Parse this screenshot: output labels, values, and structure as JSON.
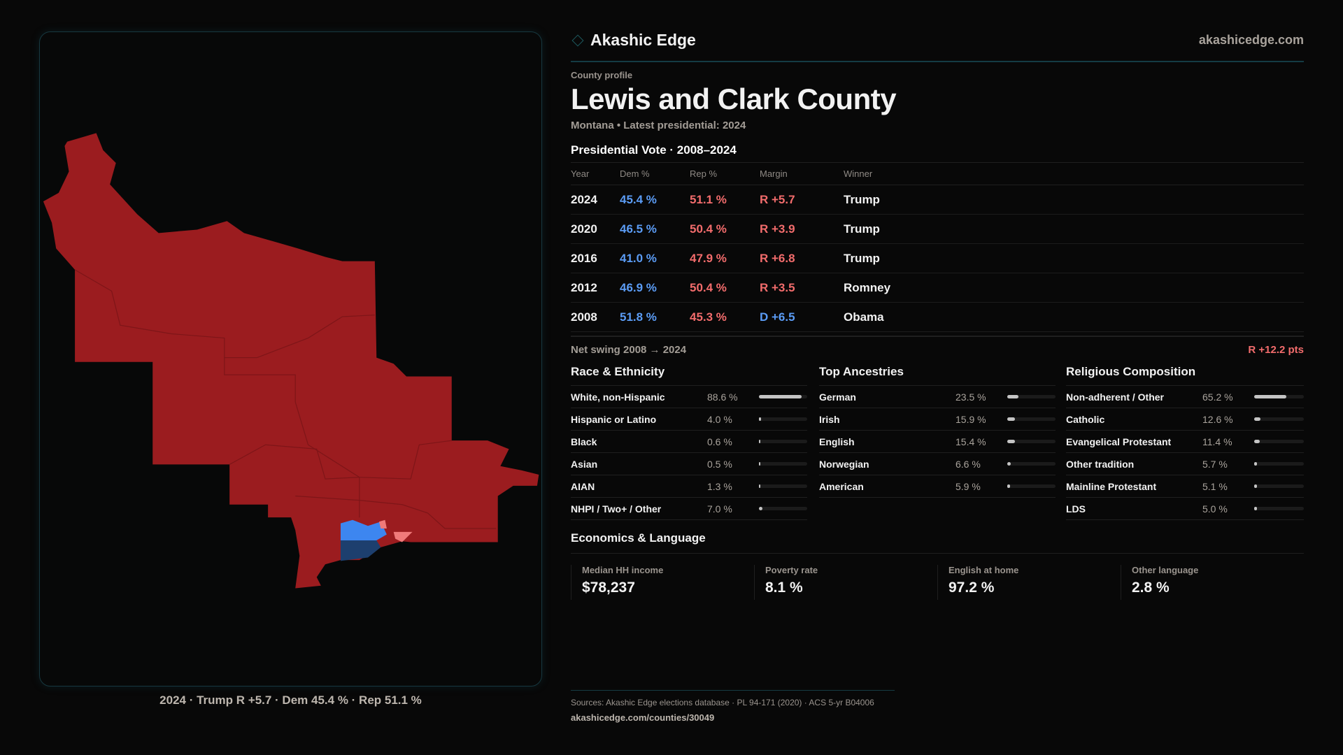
{
  "brand": {
    "name": "Akashic Edge",
    "site": "akashicedge.com",
    "icon": "diamond-icon"
  },
  "profile": {
    "eyebrow": "County profile",
    "title": "Lewis and Clark County",
    "subtitle": "Montana • Latest presidential: 2024"
  },
  "map": {
    "caption": "2024 · Trump R +5.7 · Dem 45.4 % · Rep 51.1 %",
    "colors": {
      "rep": "#9b1c1f",
      "dem": "#3d86f0",
      "dem_dark": "#1d3f6e",
      "rep_light": "#f07a7a"
    }
  },
  "votes": {
    "title": "Presidential Vote · 2008–2024",
    "headers": [
      "Year",
      "Dem %",
      "Rep %",
      "Margin",
      "Winner"
    ],
    "rows": [
      {
        "year": "2024",
        "dem": "45.4 %",
        "rep": "51.1 %",
        "margin": "R +5.7",
        "party": "R",
        "winner": "Trump"
      },
      {
        "year": "2020",
        "dem": "46.5 %",
        "rep": "50.4 %",
        "margin": "R +3.9",
        "party": "R",
        "winner": "Trump"
      },
      {
        "year": "2016",
        "dem": "41.0 %",
        "rep": "47.9 %",
        "margin": "R +6.8",
        "party": "R",
        "winner": "Trump"
      },
      {
        "year": "2012",
        "dem": "46.9 %",
        "rep": "50.4 %",
        "margin": "R +3.5",
        "party": "R",
        "winner": "Romney"
      },
      {
        "year": "2008",
        "dem": "51.8 %",
        "rep": "45.3 %",
        "margin": "D +6.5",
        "party": "D",
        "winner": "Obama"
      }
    ],
    "swing_label": "Net swing 2008 → 2024",
    "swing_value": "R +12.2 pts"
  },
  "race": {
    "title": "Race & Ethnicity",
    "items": [
      {
        "label": "White, non-Hispanic",
        "value": "88.6 %",
        "pct": 88.6
      },
      {
        "label": "Hispanic or Latino",
        "value": "4.0 %",
        "pct": 4.0
      },
      {
        "label": "Black",
        "value": "0.6 %",
        "pct": 0.6
      },
      {
        "label": "Asian",
        "value": "0.5 %",
        "pct": 0.5
      },
      {
        "label": "AIAN",
        "value": "1.3 %",
        "pct": 1.3
      },
      {
        "label": "NHPI / Two+ / Other",
        "value": "7.0 %",
        "pct": 7.0
      }
    ]
  },
  "ancestry": {
    "title": "Top Ancestries",
    "items": [
      {
        "label": "German",
        "value": "23.5 %",
        "pct": 23.5
      },
      {
        "label": "Irish",
        "value": "15.9 %",
        "pct": 15.9
      },
      {
        "label": "English",
        "value": "15.4 %",
        "pct": 15.4
      },
      {
        "label": "Norwegian",
        "value": "6.6 %",
        "pct": 6.6
      },
      {
        "label": "American",
        "value": "5.9 %",
        "pct": 5.9
      }
    ]
  },
  "religion": {
    "title": "Religious Composition",
    "items": [
      {
        "label": "Non-adherent / Other",
        "value": "65.2 %",
        "pct": 65.2
      },
      {
        "label": "Catholic",
        "value": "12.6 %",
        "pct": 12.6
      },
      {
        "label": "Evangelical Protestant",
        "value": "11.4 %",
        "pct": 11.4
      },
      {
        "label": "Other tradition",
        "value": "5.7 %",
        "pct": 5.7
      },
      {
        "label": "Mainline Protestant",
        "value": "5.1 %",
        "pct": 5.1
      },
      {
        "label": "LDS",
        "value": "5.0 %",
        "pct": 5.0
      }
    ]
  },
  "econ": {
    "title": "Economics & Language",
    "stats": [
      {
        "label": "Median HH income",
        "value": "$78,237"
      },
      {
        "label": "Poverty rate",
        "value": "8.1 %"
      },
      {
        "label": "English at home",
        "value": "97.2 %"
      },
      {
        "label": "Other language",
        "value": "2.8 %"
      }
    ]
  },
  "footer": {
    "sources": "Sources: Akashic Edge elections database · PL 94-171 (2020) · ACS 5-yr B04006",
    "url": "akashicedge.com/counties/30049"
  }
}
